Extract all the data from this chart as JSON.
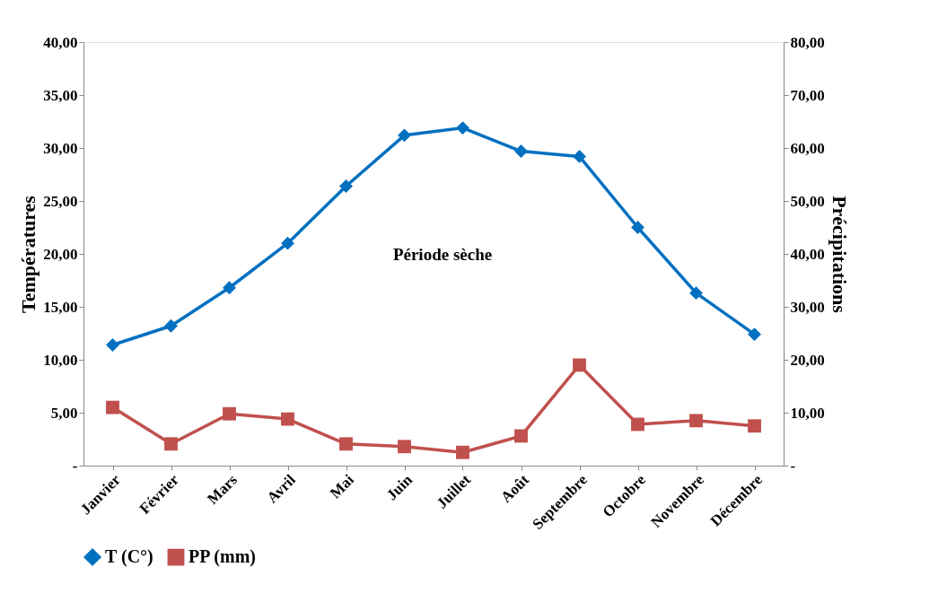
{
  "chart_data": {
    "type": "line",
    "categories": [
      "Janvier",
      "Février",
      "Mars",
      "Avril",
      "Mai",
      "Juin",
      "Juillet",
      "Août",
      "Septembre",
      "Octobre",
      "Novembre",
      "Décembre"
    ],
    "series": [
      {
        "name": "T (C°)",
        "color": "#0070c0",
        "marker": "diamond",
        "values": [
          11.4,
          13.2,
          16.8,
          21.0,
          26.4,
          31.2,
          31.9,
          29.7,
          29.2,
          22.5,
          16.3,
          12.4
        ]
      },
      {
        "name": "PP (mm)",
        "color": "#c0504d",
        "marker": "square",
        "axis": "y2",
        "values": [
          11.0,
          4.1,
          9.8,
          8.8,
          4.1,
          3.6,
          2.5,
          5.6,
          19.0,
          7.8,
          8.5,
          7.5
        ]
      }
    ],
    "ylabel": "Températures",
    "y2label": "Précipitations",
    "ylim": [
      0,
      40
    ],
    "yticks": [
      {
        "value": 0,
        "label": "-"
      },
      {
        "value": 5,
        "label": "5,00"
      },
      {
        "value": 10,
        "label": "10,00"
      },
      {
        "value": 15,
        "label": "15,00"
      },
      {
        "value": 20,
        "label": "20,00"
      },
      {
        "value": 25,
        "label": "25,00"
      },
      {
        "value": 30,
        "label": "30,00"
      },
      {
        "value": 35,
        "label": "35,00"
      },
      {
        "value": 40,
        "label": "40,00"
      }
    ],
    "y2lim": [
      0,
      80
    ],
    "y2ticks": [
      {
        "value": 0,
        "label": "-"
      },
      {
        "value": 10,
        "label": "10,00"
      },
      {
        "value": 20,
        "label": "20,00"
      },
      {
        "value": 30,
        "label": "30,00"
      },
      {
        "value": 40,
        "label": "40,00"
      },
      {
        "value": 50,
        "label": "50,00"
      },
      {
        "value": 60,
        "label": "60,00"
      },
      {
        "value": 70,
        "label": "70,00"
      },
      {
        "value": 80,
        "label": "80,00"
      }
    ],
    "annotations": [
      "Période sèche"
    ],
    "legend": "bottom",
    "line_style": "solid"
  }
}
